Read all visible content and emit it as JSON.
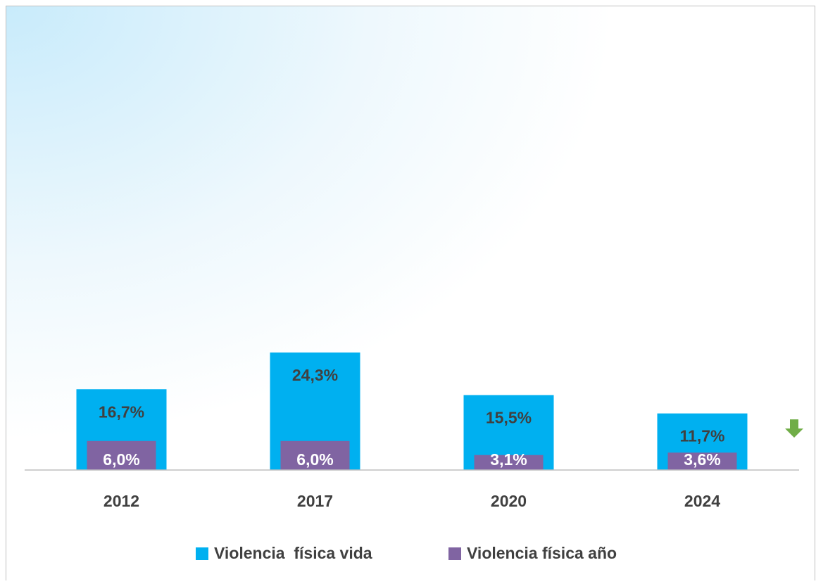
{
  "chart_data": {
    "type": "bar",
    "categories": [
      "2012",
      "2017",
      "2020",
      "2024"
    ],
    "series": [
      {
        "name": "Violencia  física vida",
        "color": "#00b0f0",
        "values": [
          16.7,
          24.3,
          15.5,
          11.7
        ],
        "value_labels": [
          "16,7%",
          "24,3%",
          "15,5%",
          "11,7%"
        ]
      },
      {
        "name": "Violencia física año",
        "color": "#8064a2",
        "values": [
          6.0,
          6.0,
          3.1,
          3.6
        ],
        "value_labels": [
          "6,0%",
          "6,0%",
          "3,1%",
          "3,6%"
        ]
      }
    ],
    "legend": "bottom"
  }
}
